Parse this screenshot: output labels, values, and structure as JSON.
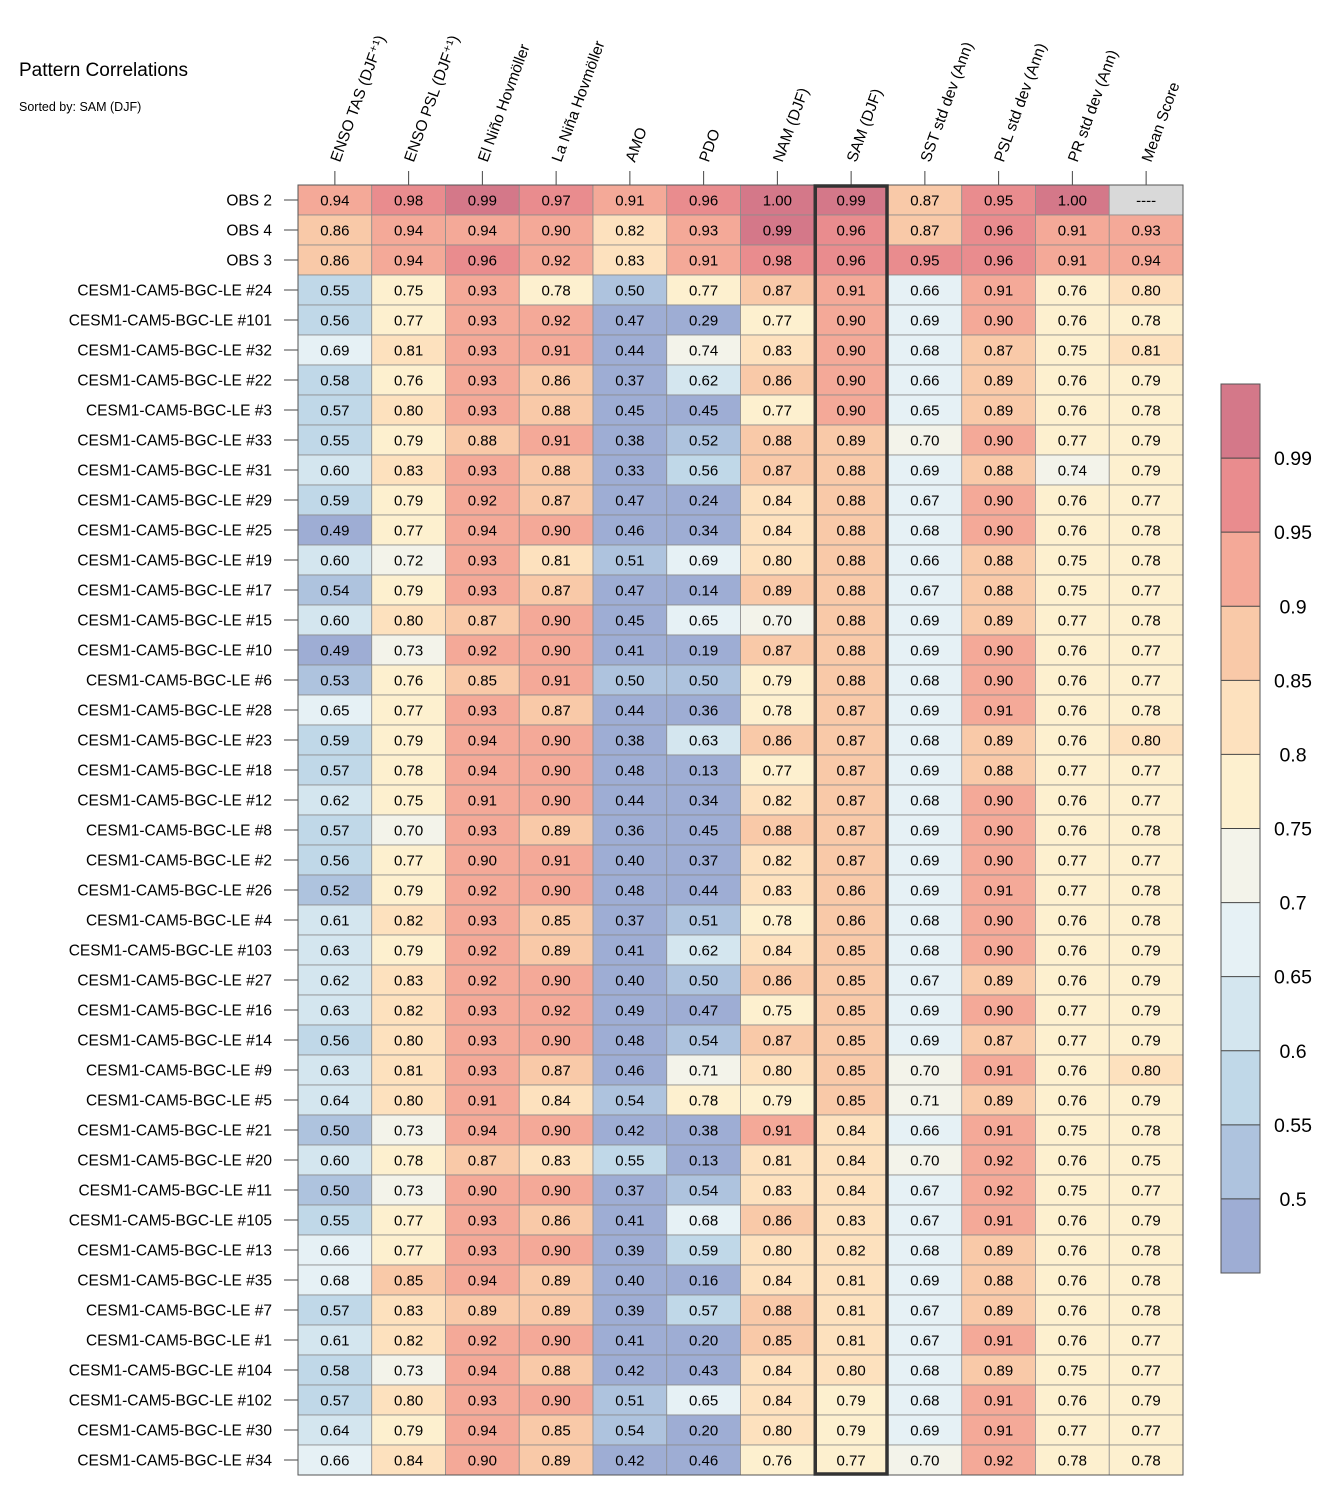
{
  "chart_data": {
    "type": "heatmap",
    "title": "Pattern Correlations",
    "subtitle": "Sorted by: SAM (DJF)",
    "highlight_column": "SAM (DJF)",
    "columns": [
      "ENSO TAS (DJF⁺¹)",
      "ENSO PSL (DJF⁺¹)",
      "El Niño Hovmöller",
      "La Niña Hovmöller",
      "AMO",
      "PDO",
      "NAM (DJF)",
      "SAM (DJF)",
      "SST std dev (Ann)",
      "PSL std dev (Ann)",
      "PR std dev (Ann)",
      "Mean Score"
    ],
    "missing_label": "----",
    "rows": [
      {
        "name": "OBS 2",
        "values": [
          0.94,
          0.98,
          0.99,
          0.97,
          0.91,
          0.96,
          1.0,
          0.99,
          0.87,
          0.95,
          1.0,
          null
        ]
      },
      {
        "name": "OBS 4",
        "values": [
          0.86,
          0.94,
          0.94,
          0.9,
          0.82,
          0.93,
          0.99,
          0.96,
          0.87,
          0.96,
          0.91,
          0.93
        ]
      },
      {
        "name": "OBS 3",
        "values": [
          0.86,
          0.94,
          0.96,
          0.92,
          0.83,
          0.91,
          0.98,
          0.96,
          0.95,
          0.96,
          0.91,
          0.94
        ]
      },
      {
        "name": "CESM1-CAM5-BGC-LE #24",
        "values": [
          0.55,
          0.75,
          0.93,
          0.78,
          0.5,
          0.77,
          0.87,
          0.91,
          0.66,
          0.91,
          0.76,
          0.8
        ]
      },
      {
        "name": "CESM1-CAM5-BGC-LE #101",
        "values": [
          0.56,
          0.77,
          0.93,
          0.92,
          0.47,
          0.29,
          0.77,
          0.9,
          0.69,
          0.9,
          0.76,
          0.78
        ]
      },
      {
        "name": "CESM1-CAM5-BGC-LE #32",
        "values": [
          0.69,
          0.81,
          0.93,
          0.91,
          0.44,
          0.74,
          0.83,
          0.9,
          0.68,
          0.87,
          0.75,
          0.81
        ]
      },
      {
        "name": "CESM1-CAM5-BGC-LE #22",
        "values": [
          0.58,
          0.76,
          0.93,
          0.86,
          0.37,
          0.62,
          0.86,
          0.9,
          0.66,
          0.89,
          0.76,
          0.79
        ]
      },
      {
        "name": "CESM1-CAM5-BGC-LE #3",
        "values": [
          0.57,
          0.8,
          0.93,
          0.88,
          0.45,
          0.45,
          0.77,
          0.9,
          0.65,
          0.89,
          0.76,
          0.78
        ]
      },
      {
        "name": "CESM1-CAM5-BGC-LE #33",
        "values": [
          0.55,
          0.79,
          0.88,
          0.91,
          0.38,
          0.52,
          0.88,
          0.89,
          0.7,
          0.9,
          0.77,
          0.79
        ]
      },
      {
        "name": "CESM1-CAM5-BGC-LE #31",
        "values": [
          0.6,
          0.83,
          0.93,
          0.88,
          0.33,
          0.56,
          0.87,
          0.88,
          0.69,
          0.88,
          0.74,
          0.79
        ]
      },
      {
        "name": "CESM1-CAM5-BGC-LE #29",
        "values": [
          0.59,
          0.79,
          0.92,
          0.87,
          0.47,
          0.24,
          0.84,
          0.88,
          0.67,
          0.9,
          0.76,
          0.77
        ]
      },
      {
        "name": "CESM1-CAM5-BGC-LE #25",
        "values": [
          0.49,
          0.77,
          0.94,
          0.9,
          0.46,
          0.34,
          0.84,
          0.88,
          0.68,
          0.9,
          0.76,
          0.78
        ]
      },
      {
        "name": "CESM1-CAM5-BGC-LE #19",
        "values": [
          0.6,
          0.72,
          0.93,
          0.81,
          0.51,
          0.69,
          0.8,
          0.88,
          0.66,
          0.88,
          0.75,
          0.78
        ]
      },
      {
        "name": "CESM1-CAM5-BGC-LE #17",
        "values": [
          0.54,
          0.79,
          0.93,
          0.87,
          0.47,
          0.14,
          0.89,
          0.88,
          0.67,
          0.88,
          0.75,
          0.77
        ]
      },
      {
        "name": "CESM1-CAM5-BGC-LE #15",
        "values": [
          0.6,
          0.8,
          0.87,
          0.9,
          0.45,
          0.65,
          0.7,
          0.88,
          0.69,
          0.89,
          0.77,
          0.78
        ]
      },
      {
        "name": "CESM1-CAM5-BGC-LE #10",
        "values": [
          0.49,
          0.73,
          0.92,
          0.9,
          0.41,
          0.19,
          0.87,
          0.88,
          0.69,
          0.9,
          0.76,
          0.77
        ]
      },
      {
        "name": "CESM1-CAM5-BGC-LE #6",
        "values": [
          0.53,
          0.76,
          0.85,
          0.91,
          0.5,
          0.5,
          0.79,
          0.88,
          0.68,
          0.9,
          0.76,
          0.77
        ]
      },
      {
        "name": "CESM1-CAM5-BGC-LE #28",
        "values": [
          0.65,
          0.77,
          0.93,
          0.87,
          0.44,
          0.36,
          0.78,
          0.87,
          0.69,
          0.91,
          0.76,
          0.78
        ]
      },
      {
        "name": "CESM1-CAM5-BGC-LE #23",
        "values": [
          0.59,
          0.79,
          0.94,
          0.9,
          0.38,
          0.63,
          0.86,
          0.87,
          0.68,
          0.89,
          0.76,
          0.8
        ]
      },
      {
        "name": "CESM1-CAM5-BGC-LE #18",
        "values": [
          0.57,
          0.78,
          0.94,
          0.9,
          0.48,
          0.13,
          0.77,
          0.87,
          0.69,
          0.88,
          0.77,
          0.77
        ]
      },
      {
        "name": "CESM1-CAM5-BGC-LE #12",
        "values": [
          0.62,
          0.75,
          0.91,
          0.9,
          0.44,
          0.34,
          0.82,
          0.87,
          0.68,
          0.9,
          0.76,
          0.77
        ]
      },
      {
        "name": "CESM1-CAM5-BGC-LE #8",
        "values": [
          0.57,
          0.7,
          0.93,
          0.89,
          0.36,
          0.45,
          0.88,
          0.87,
          0.69,
          0.9,
          0.76,
          0.78
        ]
      },
      {
        "name": "CESM1-CAM5-BGC-LE #2",
        "values": [
          0.56,
          0.77,
          0.9,
          0.91,
          0.4,
          0.37,
          0.82,
          0.87,
          0.69,
          0.9,
          0.77,
          0.77
        ]
      },
      {
        "name": "CESM1-CAM5-BGC-LE #26",
        "values": [
          0.52,
          0.79,
          0.92,
          0.9,
          0.48,
          0.44,
          0.83,
          0.86,
          0.69,
          0.91,
          0.77,
          0.78
        ]
      },
      {
        "name": "CESM1-CAM5-BGC-LE #4",
        "values": [
          0.61,
          0.82,
          0.93,
          0.85,
          0.37,
          0.51,
          0.78,
          0.86,
          0.68,
          0.9,
          0.76,
          0.78
        ]
      },
      {
        "name": "CESM1-CAM5-BGC-LE #103",
        "values": [
          0.63,
          0.79,
          0.92,
          0.89,
          0.41,
          0.62,
          0.84,
          0.85,
          0.68,
          0.9,
          0.76,
          0.79
        ]
      },
      {
        "name": "CESM1-CAM5-BGC-LE #27",
        "values": [
          0.62,
          0.83,
          0.92,
          0.9,
          0.4,
          0.5,
          0.86,
          0.85,
          0.67,
          0.89,
          0.76,
          0.79
        ]
      },
      {
        "name": "CESM1-CAM5-BGC-LE #16",
        "values": [
          0.63,
          0.82,
          0.93,
          0.92,
          0.49,
          0.47,
          0.75,
          0.85,
          0.69,
          0.9,
          0.77,
          0.79
        ]
      },
      {
        "name": "CESM1-CAM5-BGC-LE #14",
        "values": [
          0.56,
          0.8,
          0.93,
          0.9,
          0.48,
          0.54,
          0.87,
          0.85,
          0.69,
          0.87,
          0.77,
          0.79
        ]
      },
      {
        "name": "CESM1-CAM5-BGC-LE #9",
        "values": [
          0.63,
          0.81,
          0.93,
          0.87,
          0.46,
          0.71,
          0.8,
          0.85,
          0.7,
          0.91,
          0.76,
          0.8
        ]
      },
      {
        "name": "CESM1-CAM5-BGC-LE #5",
        "values": [
          0.64,
          0.8,
          0.91,
          0.84,
          0.54,
          0.78,
          0.79,
          0.85,
          0.71,
          0.89,
          0.76,
          0.79
        ]
      },
      {
        "name": "CESM1-CAM5-BGC-LE #21",
        "values": [
          0.5,
          0.73,
          0.94,
          0.9,
          0.42,
          0.38,
          0.91,
          0.84,
          0.66,
          0.91,
          0.75,
          0.78
        ]
      },
      {
        "name": "CESM1-CAM5-BGC-LE #20",
        "values": [
          0.6,
          0.78,
          0.87,
          0.83,
          0.55,
          0.13,
          0.81,
          0.84,
          0.7,
          0.92,
          0.76,
          0.75
        ]
      },
      {
        "name": "CESM1-CAM5-BGC-LE #11",
        "values": [
          0.5,
          0.73,
          0.9,
          0.9,
          0.37,
          0.54,
          0.83,
          0.84,
          0.67,
          0.92,
          0.75,
          0.77
        ]
      },
      {
        "name": "CESM1-CAM5-BGC-LE #105",
        "values": [
          0.55,
          0.77,
          0.93,
          0.86,
          0.41,
          0.68,
          0.86,
          0.83,
          0.67,
          0.91,
          0.76,
          0.79
        ]
      },
      {
        "name": "CESM1-CAM5-BGC-LE #13",
        "values": [
          0.66,
          0.77,
          0.93,
          0.9,
          0.39,
          0.59,
          0.8,
          0.82,
          0.68,
          0.89,
          0.76,
          0.78
        ]
      },
      {
        "name": "CESM1-CAM5-BGC-LE #35",
        "values": [
          0.68,
          0.85,
          0.94,
          0.89,
          0.4,
          0.16,
          0.84,
          0.81,
          0.69,
          0.88,
          0.76,
          0.78
        ]
      },
      {
        "name": "CESM1-CAM5-BGC-LE #7",
        "values": [
          0.57,
          0.83,
          0.89,
          0.89,
          0.39,
          0.57,
          0.88,
          0.81,
          0.67,
          0.89,
          0.76,
          0.78
        ]
      },
      {
        "name": "CESM1-CAM5-BGC-LE #1",
        "values": [
          0.61,
          0.82,
          0.92,
          0.9,
          0.41,
          0.2,
          0.85,
          0.81,
          0.67,
          0.91,
          0.76,
          0.77
        ]
      },
      {
        "name": "CESM1-CAM5-BGC-LE #104",
        "values": [
          0.58,
          0.73,
          0.94,
          0.88,
          0.42,
          0.43,
          0.84,
          0.8,
          0.68,
          0.89,
          0.75,
          0.77
        ]
      },
      {
        "name": "CESM1-CAM5-BGC-LE #102",
        "values": [
          0.57,
          0.8,
          0.93,
          0.9,
          0.51,
          0.65,
          0.84,
          0.79,
          0.68,
          0.91,
          0.76,
          0.79
        ]
      },
      {
        "name": "CESM1-CAM5-BGC-LE #30",
        "values": [
          0.64,
          0.79,
          0.94,
          0.85,
          0.54,
          0.2,
          0.8,
          0.79,
          0.69,
          0.91,
          0.77,
          0.77
        ]
      },
      {
        "name": "CESM1-CAM5-BGC-LE #34",
        "values": [
          0.66,
          0.84,
          0.9,
          0.89,
          0.42,
          0.46,
          0.76,
          0.77,
          0.7,
          0.92,
          0.78,
          0.78
        ]
      }
    ],
    "colorbar": {
      "levels": [
        0.5,
        0.55,
        0.6,
        0.65,
        0.7,
        0.75,
        0.8,
        0.85,
        0.9,
        0.95,
        0.99
      ],
      "tick_labels": [
        "0.5",
        "0.55",
        "0.6",
        "0.65",
        "0.7",
        "0.75",
        "0.8",
        "0.85",
        "0.9",
        "0.95",
        "0.99"
      ],
      "colors": [
        "#9eadd4",
        "#aec3de",
        "#c0d8e8",
        "#d4e6ef",
        "#e6f1f5",
        "#f3f3ea",
        "#fdf0cf",
        "#fde1be",
        "#f9c9a8",
        "#f4a998",
        "#e98c8e",
        "#d47889"
      ],
      "missing_color": "#d9d9d9"
    }
  }
}
